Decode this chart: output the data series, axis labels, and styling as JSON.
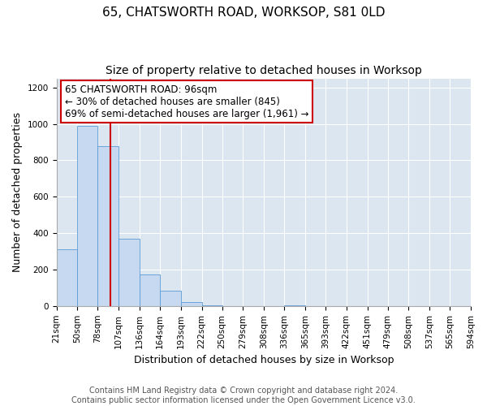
{
  "title": "65, CHATSWORTH ROAD, WORKSOP, S81 0LD",
  "subtitle": "Size of property relative to detached houses in Worksop",
  "xlabel": "Distribution of detached houses by size in Worksop",
  "ylabel": "Number of detached properties",
  "bin_edges": [
    21,
    50,
    78,
    107,
    136,
    164,
    193,
    222,
    250,
    279,
    308,
    336,
    365,
    393,
    422,
    451,
    479,
    508,
    537,
    565,
    594
  ],
  "bar_heights": [
    310,
    990,
    880,
    370,
    175,
    85,
    20,
    5,
    0,
    0,
    0,
    5,
    0,
    0,
    0,
    0,
    0,
    0,
    0,
    0
  ],
  "bar_color": "#c6d9f0",
  "bar_edgecolor": "#5b9bd5",
  "property_size": 96,
  "red_line_color": "#cc0000",
  "annotation_line1": "65 CHATSWORTH ROAD: 96sqm",
  "annotation_line2": "← 30% of detached houses are smaller (845)",
  "annotation_line3": "69% of semi-detached houses are larger (1,961) →",
  "annotation_box_edgecolor": "#cc0000",
  "annotation_box_facecolor": "#ffffff",
  "ylim": [
    0,
    1250
  ],
  "yticks": [
    0,
    200,
    400,
    600,
    800,
    1000,
    1200
  ],
  "footer_line1": "Contains HM Land Registry data © Crown copyright and database right 2024.",
  "footer_line2": "Contains public sector information licensed under the Open Government Licence v3.0.",
  "plot_bg_color": "#dce6f1",
  "title_fontsize": 11,
  "subtitle_fontsize": 10,
  "axis_label_fontsize": 9,
  "tick_fontsize": 7.5,
  "footer_fontsize": 7,
  "annotation_fontsize": 8.5
}
